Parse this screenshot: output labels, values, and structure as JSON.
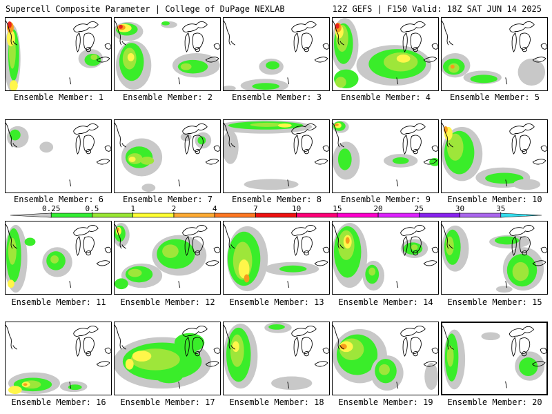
{
  "header": {
    "left_title": "Supercell Composite Parameter | College of DuPage NEXLAB",
    "right_title": "12Z GEFS | F150 Valid: 18Z SAT JUN 14 2025"
  },
  "colorbar": {
    "ticks": [
      "0.25",
      "0.5",
      "1",
      "2",
      "4",
      "7",
      "10",
      "15",
      "20",
      "25",
      "30",
      "35"
    ],
    "colors": [
      "#c8c8c8",
      "#33ee33",
      "#99e633",
      "#ffff33",
      "#ffaa33",
      "#ff7722",
      "#ee1111",
      "#ff0077",
      "#ff00cc",
      "#dd22ff",
      "#8822ee",
      "#aa66ee",
      "#33ddee"
    ]
  },
  "palette": {
    "gray": "#c8c8c8",
    "green": "#3aed2a",
    "lime": "#9ee63a",
    "yellow": "#fff64a",
    "orange": "#f79a1c",
    "red": "#e8231b"
  },
  "members": [
    {
      "label": "Ensemble Member: 1",
      "selected": false
    },
    {
      "label": "Ensemble Member: 2",
      "selected": false
    },
    {
      "label": "Ensemble Member: 3",
      "selected": false
    },
    {
      "label": "Ensemble Member: 4",
      "selected": false
    },
    {
      "label": "Ensemble Member: 5",
      "selected": false
    },
    {
      "label": "Ensemble Member: 6",
      "selected": false
    },
    {
      "label": "Ensemble Member: 7",
      "selected": false
    },
    {
      "label": "Ensemble Member: 8",
      "selected": false
    },
    {
      "label": "Ensemble Member: 9",
      "selected": false
    },
    {
      "label": "Ensemble Member: 10",
      "selected": false
    },
    {
      "label": "Ensemble Member: 11",
      "selected": false
    },
    {
      "label": "Ensemble Member: 12",
      "selected": false
    },
    {
      "label": "Ensemble Member: 13",
      "selected": false
    },
    {
      "label": "Ensemble Member: 14",
      "selected": false
    },
    {
      "label": "Ensemble Member: 15",
      "selected": false
    },
    {
      "label": "Ensemble Member: 16",
      "selected": false
    },
    {
      "label": "Ensemble Member: 17",
      "selected": false
    },
    {
      "label": "Ensemble Member: 18",
      "selected": false
    },
    {
      "label": "Ensemble Member: 19",
      "selected": false
    },
    {
      "label": "Ensemble Member: 20",
      "selected": true
    }
  ]
}
